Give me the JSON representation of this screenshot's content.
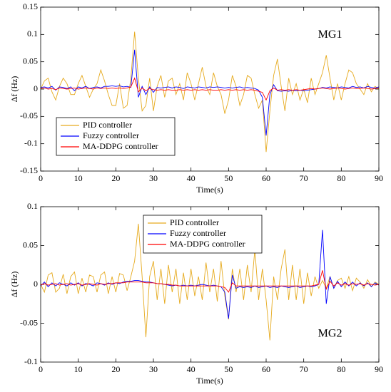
{
  "chart_data": [
    {
      "type": "line",
      "annotation": "MG1",
      "xlabel": "Time(s)",
      "ylabel": "Δf (Hz)",
      "xlim": [
        0,
        90
      ],
      "xticks": [
        0,
        10,
        20,
        30,
        40,
        50,
        60,
        70,
        80,
        90
      ],
      "ylim": [
        -0.15,
        0.15
      ],
      "yticks": [
        -0.15,
        -0.1,
        -0.05,
        0,
        0.05,
        0.1,
        0.15
      ],
      "grid": false,
      "legend": "lower left",
      "x": [
        0,
        1,
        2,
        3,
        4,
        5,
        6,
        7,
        8,
        9,
        10,
        11,
        12,
        13,
        14,
        15,
        16,
        17,
        18,
        19,
        20,
        21,
        22,
        23,
        24,
        25,
        26,
        27,
        28,
        29,
        30,
        31,
        32,
        33,
        34,
        35,
        36,
        37,
        38,
        39,
        40,
        41,
        42,
        43,
        44,
        45,
        46,
        47,
        48,
        49,
        50,
        51,
        52,
        53,
        54,
        55,
        56,
        57,
        58,
        59,
        60,
        61,
        62,
        63,
        64,
        65,
        66,
        67,
        68,
        69,
        70,
        71,
        72,
        73,
        74,
        75,
        76,
        77,
        78,
        79,
        80,
        81,
        82,
        83,
        84,
        85,
        86,
        87,
        88,
        89,
        90
      ],
      "series": [
        {
          "name": "PID controller",
          "color": "#e6aa1e",
          "values": [
            0,
            0.015,
            0.02,
            -0.005,
            -0.02,
            0.005,
            0.02,
            0.01,
            -0.01,
            -0.01,
            0.01,
            0.025,
            0.005,
            -0.015,
            0,
            0.01,
            0.035,
            0.015,
            -0.01,
            -0.03,
            -0.03,
            0.01,
            -0.035,
            -0.03,
            0.02,
            0.105,
            0.02,
            -0.04,
            -0.03,
            0.02,
            -0.04,
            0.005,
            0.025,
            -0.015,
            0.015,
            0.02,
            -0.01,
            0.01,
            -0.02,
            0.03,
            0.01,
            -0.02,
            0.01,
            0.04,
            0.005,
            -0.01,
            0.03,
            0.005,
            -0.01,
            -0.045,
            -0.02,
            0.025,
            0.005,
            -0.03,
            -0.01,
            0.025,
            0.02,
            -0.01,
            -0.035,
            -0.02,
            -0.115,
            -0.04,
            0.025,
            0.055,
            0.005,
            -0.04,
            0.02,
            -0.01,
            0.01,
            -0.02,
            0,
            -0.025,
            0.02,
            -0.01,
            0.01,
            0.03,
            0.062,
            0.02,
            -0.02,
            0.01,
            -0.02,
            0.01,
            0.035,
            0.03,
            0.01,
            0,
            -0.01,
            0.01,
            -0.005,
            0.005,
            0
          ]
        },
        {
          "name": "Fuzzy controller",
          "color": "#0000ff",
          "values": [
            0.003,
            0.004,
            0.002,
            0.005,
            -0.002,
            0.004,
            0.003,
            0.001,
            0.004,
            -0.003,
            0.004,
            0.002,
            0.005,
            0.001,
            0.003,
            0.004,
            0.002,
            0.005,
            0.005,
            0.006,
            0.005,
            0.006,
            0.004,
            0.005,
            0.003,
            0.072,
            -0.015,
            0.005,
            -0.01,
            0.004,
            -0.006,
            0.003,
            0.002,
            0.003,
            0.004,
            0.002,
            0.004,
            0.003,
            0.001,
            0.004,
            0.003,
            0.002,
            0.004,
            0.003,
            0.002,
            0.004,
            0.003,
            0.004,
            0.003,
            0.002,
            0.003,
            0.002,
            0.003,
            0.004,
            0.002,
            0.003,
            0.002,
            0.001,
            -0.002,
            -0.015,
            -0.085,
            -0.01,
            0.008,
            -0.003,
            -0.004,
            -0.003,
            -0.004,
            -0.002,
            -0.003,
            -0.002,
            -0.003,
            -0.002,
            -0.001,
            0,
            0.001,
            0.003,
            0.002,
            0.004,
            0.003,
            0.002,
            0.004,
            0.003,
            0.002,
            0.005,
            0.003,
            0.004,
            0.002,
            0.005,
            0.003,
            0.002,
            0.004
          ]
        },
        {
          "name": "MA-DDPG controller",
          "color": "#ff0000",
          "values": [
            0.001,
            0.002,
            0,
            0.001,
            -0.001,
            0.002,
            0.001,
            0,
            0.001,
            0.002,
            0,
            0.001,
            0.002,
            0.001,
            0,
            0.002,
            0.001,
            0.002,
            0.001,
            0.002,
            0.001,
            0.002,
            0.001,
            0.002,
            0.004,
            0.02,
            -0.005,
            0.002,
            -0.003,
            0.001,
            -0.001,
            -0.002,
            -0.001,
            -0.002,
            -0.001,
            -0.002,
            -0.002,
            -0.001,
            -0.002,
            -0.001,
            -0.002,
            -0.001,
            -0.002,
            -0.001,
            -0.002,
            -0.001,
            -0.002,
            -0.002,
            -0.001,
            -0.002,
            -0.001,
            -0.002,
            -0.001,
            -0.002,
            -0.001,
            -0.002,
            -0.001,
            -0.002,
            -0.004,
            -0.006,
            -0.02,
            -0.003,
            0.002,
            -0.002,
            -0.001,
            -0.002,
            -0.001,
            -0.002,
            -0.001,
            -0.002,
            -0.001,
            0,
            0.001,
            0,
            0.001,
            0.002,
            0.001,
            0,
            0.001,
            0.002,
            0.001,
            0,
            0.001,
            0.002,
            0.001,
            0.001,
            0.002,
            0.001,
            0,
            0.001,
            0.002
          ]
        }
      ]
    },
    {
      "type": "line",
      "annotation": "MG2",
      "xlabel": "Time(s)",
      "ylabel": "Δf (Hz)",
      "xlim": [
        0,
        90
      ],
      "xticks": [
        0,
        10,
        20,
        30,
        40,
        50,
        60,
        70,
        80,
        90
      ],
      "ylim": [
        -0.1,
        0.1
      ],
      "yticks": [
        -0.1,
        -0.05,
        0,
        0.05,
        0.1
      ],
      "grid": false,
      "legend": "upper center",
      "x": [
        0,
        1,
        2,
        3,
        4,
        5,
        6,
        7,
        8,
        9,
        10,
        11,
        12,
        13,
        14,
        15,
        16,
        17,
        18,
        19,
        20,
        21,
        22,
        23,
        24,
        25,
        26,
        27,
        28,
        29,
        30,
        31,
        32,
        33,
        34,
        35,
        36,
        37,
        38,
        39,
        40,
        41,
        42,
        43,
        44,
        45,
        46,
        47,
        48,
        49,
        50,
        51,
        52,
        53,
        54,
        55,
        56,
        57,
        58,
        59,
        60,
        61,
        62,
        63,
        64,
        65,
        66,
        67,
        68,
        69,
        70,
        71,
        72,
        73,
        74,
        75,
        76,
        77,
        78,
        79,
        80,
        81,
        82,
        83,
        84,
        85,
        86,
        87,
        88,
        89,
        90
      ],
      "series": [
        {
          "name": "PID controller",
          "color": "#e6aa1e",
          "values": [
            0,
            -0.01,
            0.012,
            0.015,
            -0.01,
            -0.005,
            0.013,
            -0.012,
            0.01,
            0.016,
            -0.012,
            0.008,
            -0.01,
            0.012,
            0.01,
            -0.01,
            0.012,
            0.016,
            -0.012,
            0.01,
            -0.01,
            0.014,
            0.012,
            -0.008,
            0.01,
            0.03,
            0.078,
            0.01,
            -0.068,
            0.01,
            0.03,
            -0.02,
            0.02,
            -0.025,
            0.025,
            -0.01,
            0.02,
            -0.025,
            0.015,
            -0.02,
            0.02,
            -0.015,
            0.01,
            -0.02,
            0.028,
            -0.01,
            0.02,
            -0.022,
            0.03,
            -0.015,
            -0.045,
            0.02,
            -0.01,
            0.02,
            -0.02,
            0.025,
            -0.01,
            0.045,
            -0.02,
            0.02,
            -0.02,
            -0.072,
            0.01,
            -0.02,
            0.02,
            0.045,
            -0.02,
            0.025,
            -0.02,
            0.02,
            -0.025,
            0.015,
            -0.015,
            0.01,
            -0.005,
            0.005,
            -0.005,
            0.01,
            -0.005,
            0.005,
            0.008,
            -0.005,
            0.01,
            -0.008,
            0.008,
            0.003,
            -0.005,
            0.006,
            -0.003,
            0.003,
            0
          ]
        },
        {
          "name": "Fuzzy controller",
          "color": "#0000ff",
          "values": [
            -0.002,
            0.003,
            -0.003,
            0.002,
            -0.002,
            0.002,
            0,
            -0.002,
            0.002,
            -0.001,
            0.002,
            -0.002,
            0.001,
            0,
            -0.002,
            0.002,
            0.001,
            -0.001,
            0.002,
            0,
            0.002,
            0.001,
            0.003,
            0.004,
            0.004,
            0.005,
            0.005,
            0.004,
            0.003,
            0.003,
            0.002,
            0.001,
            0.001,
            0,
            -0.001,
            -0.002,
            -0.001,
            -0.002,
            -0.001,
            -0.002,
            -0.001,
            -0.002,
            -0.001,
            0,
            -0.001,
            -0.002,
            -0.001,
            -0.002,
            -0.003,
            -0.01,
            -0.044,
            0.012,
            -0.005,
            -0.003,
            -0.004,
            -0.003,
            -0.004,
            -0.002,
            -0.004,
            -0.003,
            -0.002,
            -0.004,
            -0.003,
            -0.004,
            -0.002,
            -0.003,
            -0.004,
            -0.003,
            -0.002,
            -0.004,
            -0.003,
            -0.002,
            -0.003,
            -0.002,
            0,
            0.07,
            -0.025,
            0.01,
            -0.005,
            0.004,
            -0.003,
            0.003,
            -0.002,
            0.003,
            -0.002,
            0.002,
            -0.002,
            0.002,
            -0.003,
            0.002,
            -0.001
          ]
        },
        {
          "name": "MA-DDPG controller",
          "color": "#ff0000",
          "values": [
            -0.001,
            0.001,
            -0.001,
            0,
            0.001,
            -0.001,
            0,
            0.001,
            -0.001,
            0,
            0.001,
            -0.001,
            0,
            0.001,
            0,
            -0.001,
            0.001,
            0,
            0.001,
            0.001,
            0.002,
            0.002,
            0.002,
            0.003,
            0.003,
            0.003,
            0.003,
            0.003,
            0.002,
            0.002,
            0.002,
            0.001,
            0.001,
            0,
            0,
            -0.001,
            -0.001,
            -0.002,
            -0.002,
            -0.002,
            -0.002,
            -0.002,
            -0.002,
            -0.002,
            -0.002,
            -0.002,
            -0.002,
            -0.002,
            -0.003,
            -0.004,
            -0.01,
            0.002,
            -0.002,
            -0.002,
            -0.002,
            -0.002,
            -0.002,
            -0.002,
            -0.002,
            -0.002,
            -0.002,
            -0.002,
            -0.002,
            -0.002,
            -0.002,
            -0.002,
            -0.002,
            -0.002,
            -0.002,
            -0.002,
            -0.002,
            -0.002,
            -0.002,
            -0.001,
            0,
            0.018,
            -0.006,
            0.004,
            -0.002,
            0.002,
            -0.001,
            0.001,
            -0.001,
            0.001,
            0,
            0.001,
            -0.001,
            0.001,
            0,
            -0.001,
            0
          ]
        }
      ]
    }
  ]
}
